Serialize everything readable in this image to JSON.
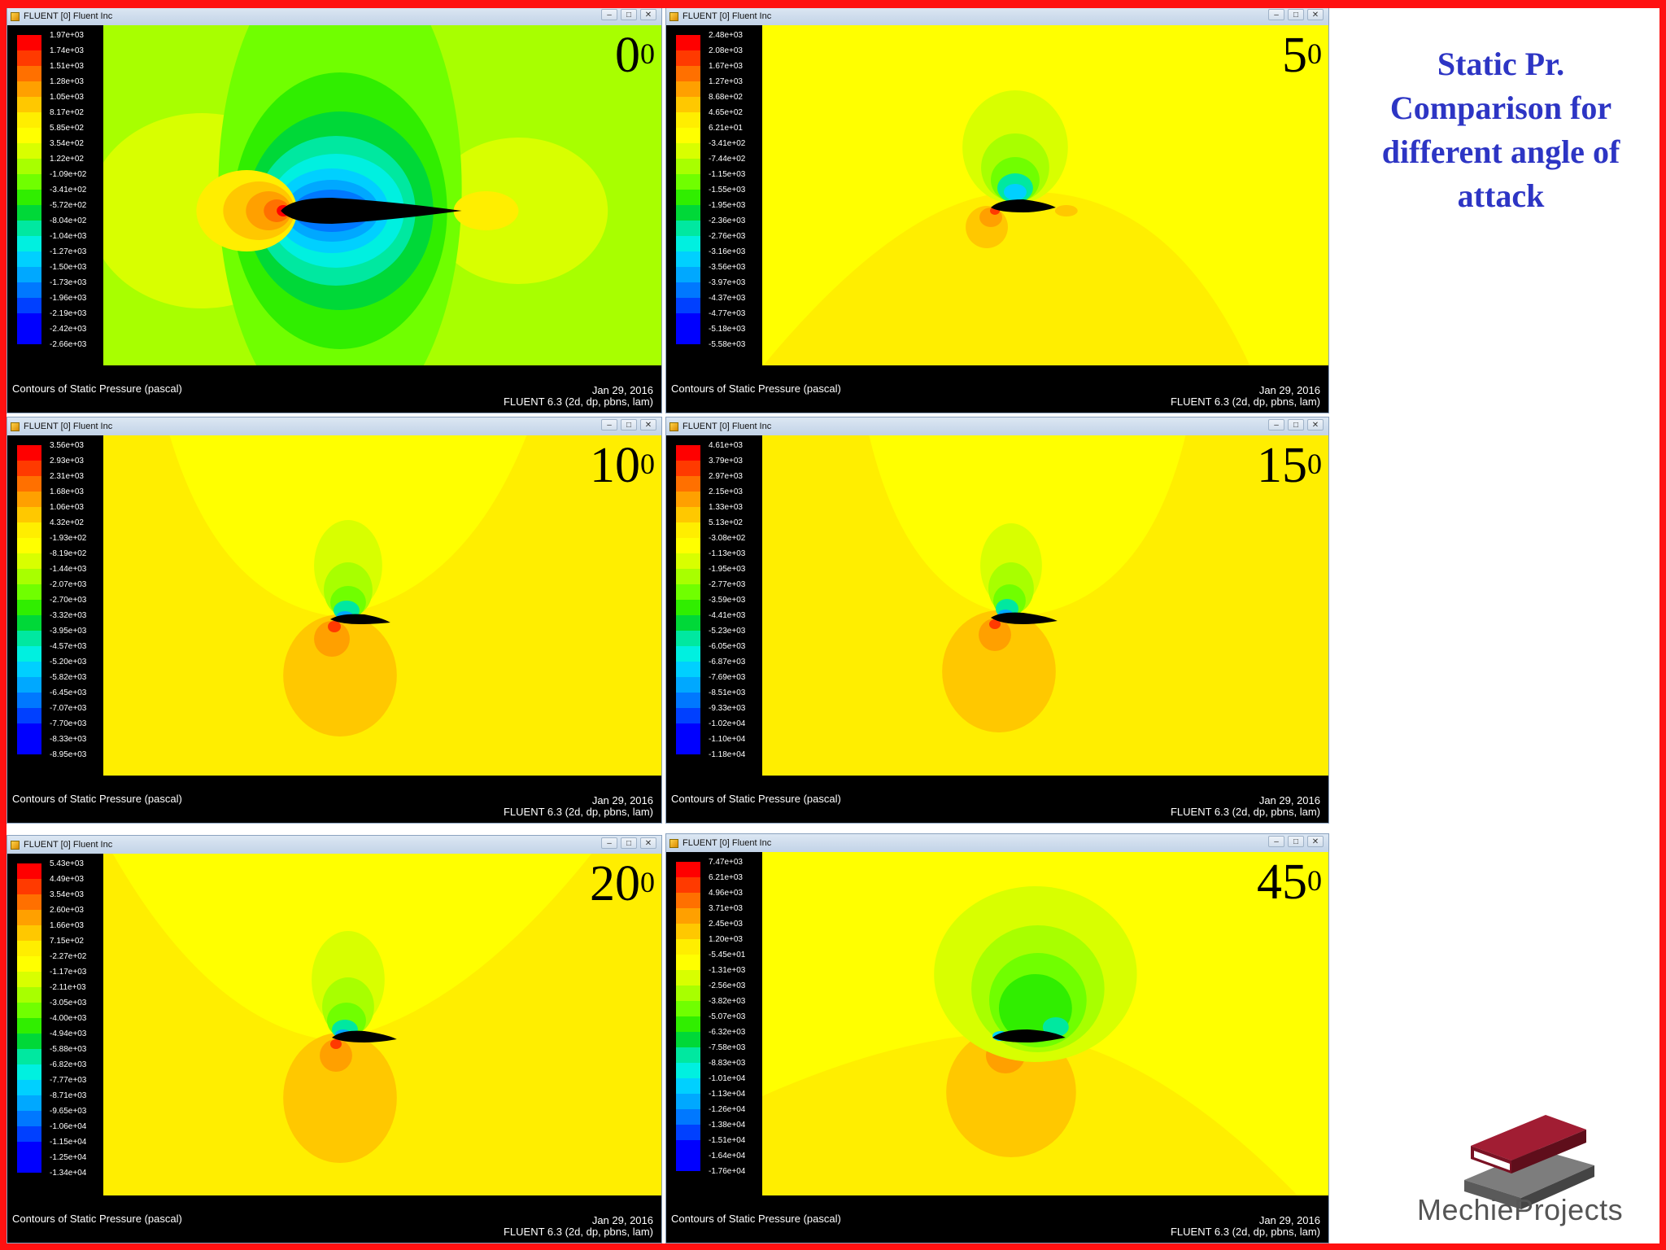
{
  "heading": "Static Pr. Comparison for different angle of attack",
  "brand": "MechieProjects",
  "window_controls": {
    "minimize": "–",
    "maximize": "□",
    "close": "✕"
  },
  "colors": {
    "heading": "#2d35c4",
    "border": "#ff1111",
    "scale": [
      "#ff0000",
      "#ff3a00",
      "#ff7000",
      "#ffa000",
      "#ffc800",
      "#ffee00",
      "#ffff00",
      "#d8ff00",
      "#a8ff00",
      "#70ff00",
      "#30ee00",
      "#00d838",
      "#00e8a0",
      "#00f0e0",
      "#00d0ff",
      "#00a8ff",
      "#0078ff",
      "#0040ff",
      "#0000ff"
    ]
  },
  "panels": [
    {
      "title": "FLUENT [0] Fluent Inc",
      "angle": "0",
      "caption": "Contours of Static Pressure (pascal)",
      "date": "Jan 29, 2016",
      "version": "FLUENT 6.3 (2d, dp, pbns, lam)",
      "legend": [
        "1.97e+03",
        "1.74e+03",
        "1.51e+03",
        "1.28e+03",
        "1.05e+03",
        "8.17e+02",
        "5.85e+02",
        "3.54e+02",
        "1.22e+02",
        "-1.09e+02",
        "-3.41e+02",
        "-5.72e+02",
        "-8.04e+02",
        "-1.04e+03",
        "-1.27e+03",
        "-1.50e+03",
        "-1.73e+03",
        "-1.96e+03",
        "-2.19e+03",
        "-2.42e+03",
        "-2.66e+03"
      ]
    },
    {
      "title": "FLUENT [0] Fluent Inc",
      "angle": "5",
      "caption": "Contours of Static Pressure (pascal)",
      "date": "Jan 29, 2016",
      "version": "FLUENT 6.3 (2d, dp, pbns, lam)",
      "legend": [
        "2.48e+03",
        "2.08e+03",
        "1.67e+03",
        "1.27e+03",
        "8.68e+02",
        "4.65e+02",
        "6.21e+01",
        "-3.41e+02",
        "-7.44e+02",
        "-1.15e+03",
        "-1.55e+03",
        "-1.95e+03",
        "-2.36e+03",
        "-2.76e+03",
        "-3.16e+03",
        "-3.56e+03",
        "-3.97e+03",
        "-4.37e+03",
        "-4.77e+03",
        "-5.18e+03",
        "-5.58e+03"
      ]
    },
    {
      "title": "FLUENT [0] Fluent Inc",
      "angle": "10",
      "caption": "Contours of Static Pressure (pascal)",
      "date": "Jan 29, 2016",
      "version": "FLUENT 6.3 (2d, dp, pbns, lam)",
      "legend": [
        "3.56e+03",
        "2.93e+03",
        "2.31e+03",
        "1.68e+03",
        "1.06e+03",
        "4.32e+02",
        "-1.93e+02",
        "-8.19e+02",
        "-1.44e+03",
        "-2.07e+03",
        "-2.70e+03",
        "-3.32e+03",
        "-3.95e+03",
        "-4.57e+03",
        "-5.20e+03",
        "-5.82e+03",
        "-6.45e+03",
        "-7.07e+03",
        "-7.70e+03",
        "-8.33e+03",
        "-8.95e+03"
      ]
    },
    {
      "title": "FLUENT [0] Fluent Inc",
      "angle": "15",
      "caption": "Contours of Static Pressure (pascal)",
      "date": "Jan 29, 2016",
      "version": "FLUENT 6.3 (2d, dp, pbns, lam)",
      "legend": [
        "4.61e+03",
        "3.79e+03",
        "2.97e+03",
        "2.15e+03",
        "1.33e+03",
        "5.13e+02",
        "-3.08e+02",
        "-1.13e+03",
        "-1.95e+03",
        "-2.77e+03",
        "-3.59e+03",
        "-4.41e+03",
        "-5.23e+03",
        "-6.05e+03",
        "-6.87e+03",
        "-7.69e+03",
        "-8.51e+03",
        "-9.33e+03",
        "-1.02e+04",
        "-1.10e+04",
        "-1.18e+04"
      ]
    },
    {
      "title": "FLUENT [0] Fluent Inc",
      "angle": "20",
      "caption": "Contours of Static Pressure (pascal)",
      "date": "Jan 29, 2016",
      "version": "FLUENT 6.3 (2d, dp, pbns, lam)",
      "legend": [
        "5.43e+03",
        "4.49e+03",
        "3.54e+03",
        "2.60e+03",
        "1.66e+03",
        "7.15e+02",
        "-2.27e+02",
        "-1.17e+03",
        "-2.11e+03",
        "-3.05e+03",
        "-4.00e+03",
        "-4.94e+03",
        "-5.88e+03",
        "-6.82e+03",
        "-7.77e+03",
        "-8.71e+03",
        "-9.65e+03",
        "-1.06e+04",
        "-1.15e+04",
        "-1.25e+04",
        "-1.34e+04"
      ]
    },
    {
      "title": "FLUENT [0] Fluent Inc",
      "angle": "45",
      "caption": "Contours of Static Pressure (pascal)",
      "date": "Jan 29, 2016",
      "version": "FLUENT 6.3 (2d, dp, pbns, lam)",
      "legend": [
        "7.47e+03",
        "6.21e+03",
        "4.96e+03",
        "3.71e+03",
        "2.45e+03",
        "1.20e+03",
        "-5.45e+01",
        "-1.31e+03",
        "-2.56e+03",
        "-3.82e+03",
        "-5.07e+03",
        "-6.32e+03",
        "-7.58e+03",
        "-8.83e+03",
        "-1.01e+04",
        "-1.13e+04",
        "-1.26e+04",
        "-1.38e+04",
        "-1.51e+04",
        "-1.64e+04",
        "-1.76e+04"
      ]
    }
  ]
}
